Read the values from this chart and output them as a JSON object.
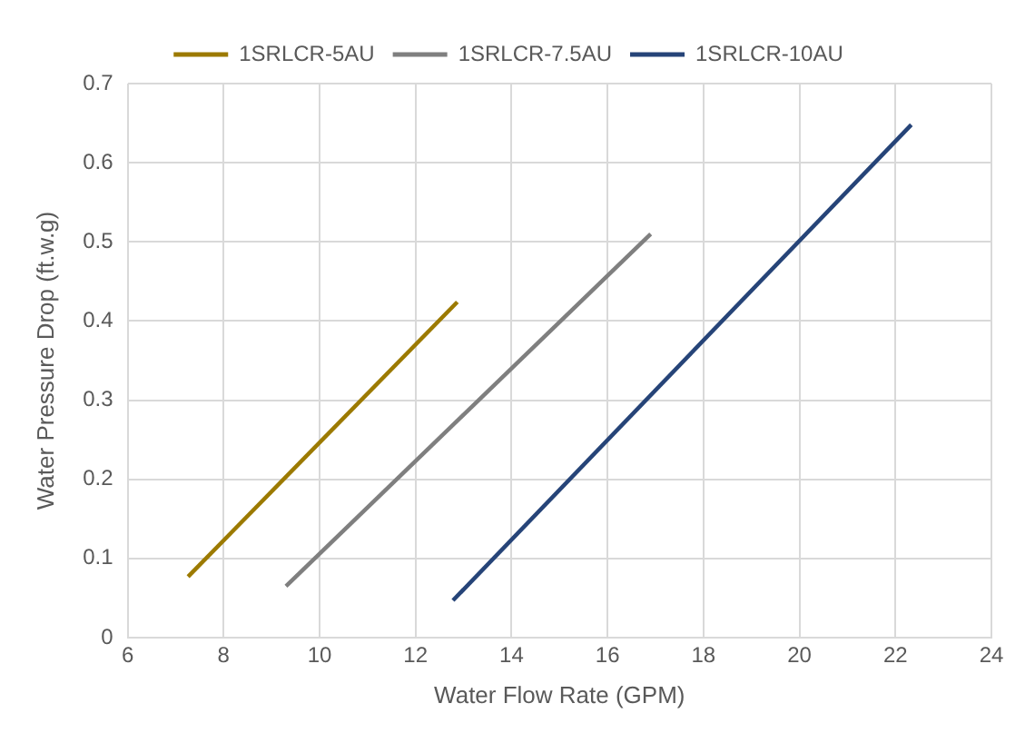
{
  "chart_data": {
    "type": "line",
    "xlabel": "Water Flow Rate (GPM)",
    "ylabel": "Water Pressure Drop (ft.w.g)",
    "series": [
      {
        "name": "1SRLCR-5AU",
        "color": "#9c7a00",
        "x": [
          7.26,
          12.87
        ],
        "values": [
          0.077,
          0.424
        ]
      },
      {
        "name": "1SRLCR-7.5AU",
        "color": "#7f7f7f",
        "x": [
          9.3,
          16.9
        ],
        "values": [
          0.065,
          0.51
        ]
      },
      {
        "name": "1SRLCR-10AU",
        "color": "#264478",
        "x": [
          12.78,
          22.33
        ],
        "values": [
          0.047,
          0.648
        ]
      }
    ],
    "xlim": [
      6,
      24
    ],
    "xticks": [
      6,
      8,
      10,
      12,
      14,
      16,
      18,
      20,
      22,
      24
    ],
    "ylim": [
      0,
      0.7
    ],
    "yticks": [
      0,
      0.1,
      0.2,
      0.3,
      0.4,
      0.5,
      0.6,
      0.7
    ],
    "grid": true,
    "legend": "top",
    "marker": "none",
    "line_style": "solid"
  }
}
